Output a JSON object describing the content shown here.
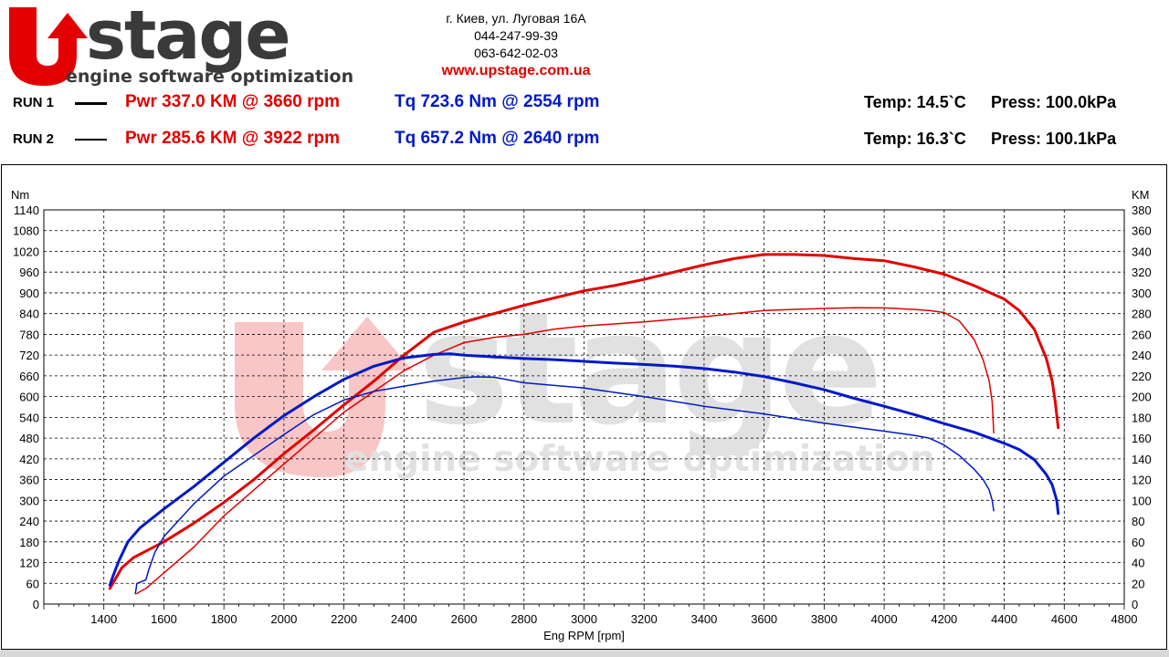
{
  "brand": {
    "logo_letter": "U",
    "logo_word": "stage",
    "tagline": "engine software optimization",
    "color_red": "#e20000",
    "color_dark": "#3a3a3a"
  },
  "contact": {
    "address": "г. Киев, ул. Луговая 16А",
    "phone1": "044-247-99-39",
    "phone2": "063-642-02-03",
    "website": "www.upstage.com.ua"
  },
  "runs": [
    {
      "label": "RUN 1",
      "pwr": "Pwr  337.0 KM @ 3660 rpm",
      "tq": "Tq 723.6 Nm @ 2554 rpm",
      "temp": "Temp: 14.5`C",
      "press": "Press: 100.0kPa"
    },
    {
      "label": "RUN 2",
      "pwr": "Pwr  285.6 KM @ 3922 rpm",
      "tq": "Tq 657.2 Nm @ 2640 rpm",
      "temp": "Temp: 16.3`C",
      "press": "Press: 100.1kPa"
    }
  ],
  "chart_data": {
    "type": "line",
    "xlabel": "Eng RPM [rpm]",
    "y_left_label": "Nm",
    "y_right_label": "KM",
    "xlim": [
      1200,
      4800
    ],
    "ylim_left": [
      0,
      1140
    ],
    "ylim_right": [
      0,
      380
    ],
    "x_ticks": [
      1400,
      1600,
      1800,
      2000,
      2200,
      2400,
      2600,
      2800,
      3000,
      3200,
      3400,
      3600,
      3800,
      4000,
      4200,
      4400,
      4600,
      4800
    ],
    "y_left_ticks": [
      0,
      60,
      120,
      180,
      240,
      300,
      360,
      420,
      480,
      540,
      600,
      660,
      720,
      780,
      840,
      900,
      960,
      1020,
      1080,
      1140
    ],
    "y_right_ticks": [
      0,
      20,
      40,
      60,
      80,
      100,
      120,
      140,
      160,
      180,
      200,
      220,
      240,
      260,
      280,
      300,
      320,
      340,
      360,
      380
    ],
    "grid": true,
    "watermark": {
      "word": "stage",
      "tagline": "engine software optimization"
    },
    "series": [
      {
        "name": "Pwr RUN 1",
        "axis": "right",
        "color": "#e20000",
        "width": 3,
        "x": [
          1420,
          1430,
          1460,
          1500,
          1600,
          1700,
          1800,
          1900,
          2000,
          2100,
          2200,
          2300,
          2400,
          2500,
          2600,
          2700,
          2800,
          2900,
          3000,
          3100,
          3200,
          3300,
          3400,
          3500,
          3600,
          3650,
          3700,
          3800,
          3900,
          4000,
          4100,
          4200,
          4300,
          4400,
          4450,
          4500,
          4540,
          4560,
          4570,
          4580
        ],
        "y": [
          15,
          20,
          35,
          45,
          60,
          78,
          98,
          120,
          145,
          168,
          192,
          215,
          240,
          262,
          272,
          280,
          288,
          295,
          302,
          307,
          313,
          320,
          327,
          333,
          337,
          337,
          337,
          336,
          333,
          331,
          325,
          318,
          307,
          294,
          283,
          265,
          237,
          215,
          195,
          170
        ]
      },
      {
        "name": "Pwr RUN 2",
        "axis": "right",
        "color": "#e20000",
        "width": 1.5,
        "x": [
          1510,
          1520,
          1540,
          1600,
          1700,
          1800,
          1900,
          2000,
          2100,
          2200,
          2300,
          2400,
          2500,
          2600,
          2700,
          2800,
          2900,
          3000,
          3200,
          3400,
          3600,
          3800,
          3900,
          4000,
          4100,
          4150,
          4200,
          4250,
          4300,
          4330,
          4350,
          4360,
          4365
        ],
        "y": [
          10,
          12,
          15,
          30,
          55,
          85,
          110,
          135,
          160,
          185,
          205,
          225,
          240,
          252,
          257,
          260,
          265,
          268,
          272,
          277,
          283,
          285,
          285.6,
          285.5,
          284,
          283,
          281,
          273,
          255,
          235,
          215,
          195,
          165
        ]
      },
      {
        "name": "Tq RUN 1",
        "axis": "left",
        "color": "#0019c8",
        "width": 3,
        "x": [
          1420,
          1430,
          1450,
          1480,
          1520,
          1600,
          1700,
          1800,
          1900,
          2000,
          2100,
          2200,
          2300,
          2400,
          2500,
          2554,
          2600,
          2700,
          2800,
          2900,
          3000,
          3100,
          3200,
          3300,
          3400,
          3500,
          3600,
          3700,
          3800,
          3900,
          4000,
          4100,
          4200,
          4300,
          4400,
          4450,
          4500,
          4540,
          4560,
          4575,
          4580
        ],
        "y": [
          55,
          80,
          125,
          180,
          220,
          275,
          340,
          410,
          480,
          545,
          600,
          650,
          688,
          712,
          722,
          723.6,
          720,
          715,
          710,
          707,
          702,
          697,
          693,
          688,
          681,
          671,
          658,
          640,
          620,
          595,
          572,
          548,
          522,
          497,
          465,
          447,
          418,
          375,
          345,
          300,
          262
        ]
      },
      {
        "name": "Tq RUN 2",
        "axis": "left",
        "color": "#0019c8",
        "width": 1.5,
        "x": [
          1505,
          1510,
          1540,
          1550,
          1570,
          1600,
          1700,
          1800,
          1900,
          2000,
          2100,
          2200,
          2300,
          2400,
          2500,
          2600,
          2640,
          2700,
          2800,
          3000,
          3200,
          3400,
          3600,
          3800,
          4000,
          4100,
          4150,
          4200,
          4250,
          4300,
          4330,
          4350,
          4360,
          4365
        ],
        "y": [
          30,
          60,
          70,
          100,
          150,
          195,
          290,
          370,
          430,
          490,
          548,
          590,
          615,
          630,
          645,
          655,
          657.2,
          656,
          640,
          625,
          600,
          572,
          550,
          523,
          500,
          488,
          480,
          460,
          430,
          390,
          360,
          330,
          300,
          270
        ]
      }
    ]
  }
}
